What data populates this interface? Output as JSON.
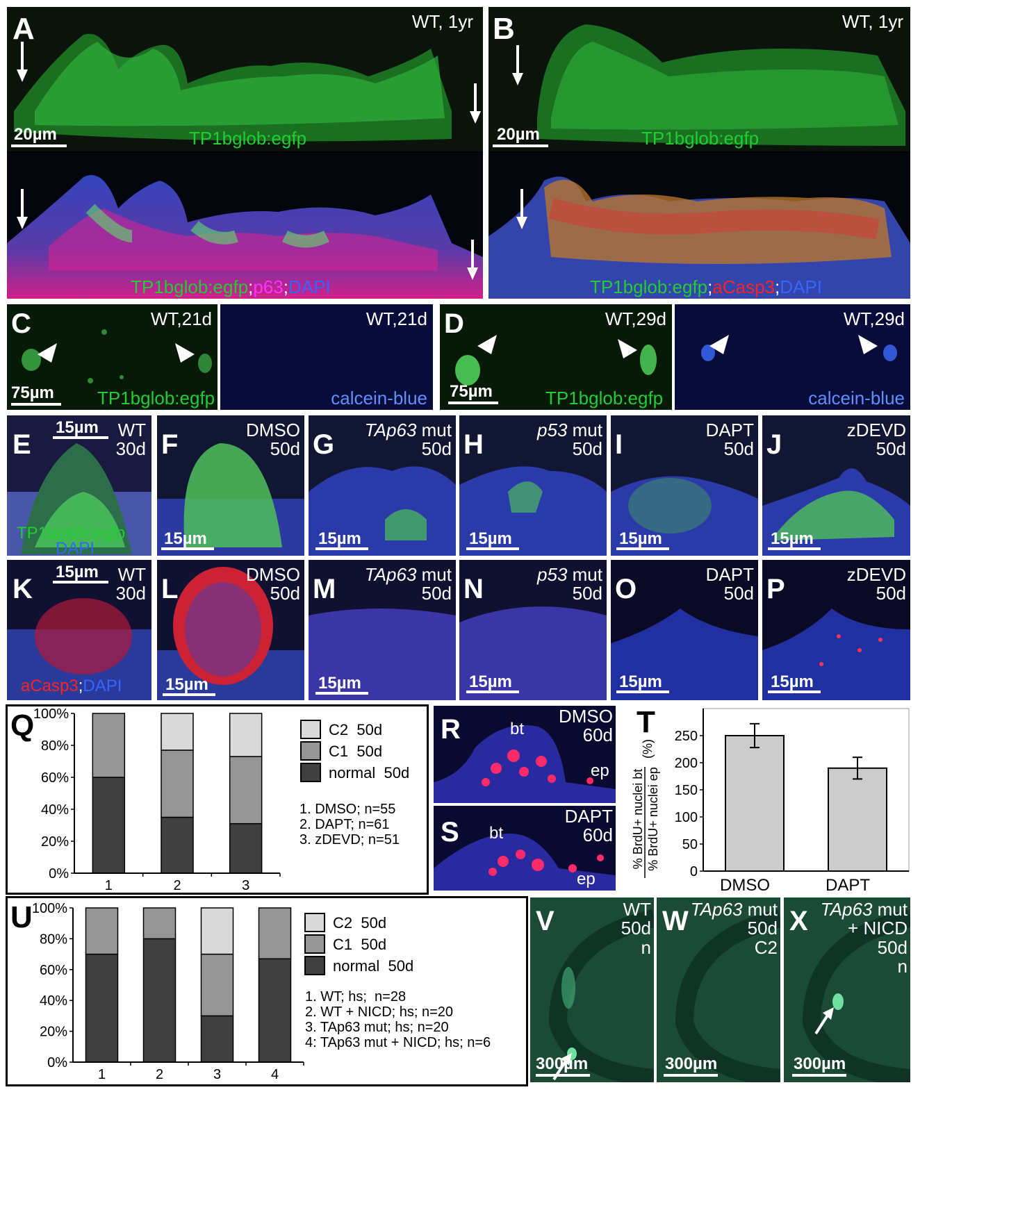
{
  "panels": {
    "A": {
      "label": "A",
      "condition": "WT, 1yr",
      "scale": "20µm",
      "stain_top": "TP1bglob:egfp",
      "stain_bottom_1": "TP1bglob:egfp",
      "stain_bottom_sep1": ";",
      "stain_bottom_2": "p63",
      "stain_bottom_sep2": ";",
      "stain_bottom_3": "DAPI"
    },
    "B": {
      "label": "B",
      "condition": "WT, 1yr",
      "scale": "20µm",
      "stain_top": "TP1bglob:egfp",
      "stain_bottom_1": "TP1bglob:egfp",
      "stain_bottom_sep1": ";",
      "stain_bottom_2": "aCasp3",
      "stain_bottom_sep2": ";",
      "stain_bottom_3": "DAPI"
    },
    "C": {
      "label": "C",
      "condition_left": "WT,21d",
      "condition_right": "WT,21d",
      "scale": "75µm",
      "stain_left": "TP1bglob:egfp",
      "stain_right": "calcein-blue"
    },
    "D": {
      "label": "D",
      "condition_left": "WT,29d",
      "condition_right": "WT,29d",
      "scale": "75µm",
      "stain_left": "TP1bglob:egfp",
      "stain_right": "calcein-blue"
    },
    "E": {
      "label": "E",
      "cond1": "WT",
      "cond2": "30d",
      "scale": "15µm",
      "stain1": "TP1bglob:egfp",
      "stain2": "DAPI"
    },
    "F": {
      "label": "F",
      "cond1": "DMSO",
      "cond2": "50d",
      "scale": "15µm"
    },
    "G": {
      "label": "G",
      "cond1a": "TAp63",
      "cond1b": " mut",
      "cond2": "50d",
      "scale": "15µm"
    },
    "H": {
      "label": "H",
      "cond1a": "p53",
      "cond1b": " mut",
      "cond2": "50d",
      "scale": "15µm"
    },
    "I": {
      "label": "I",
      "cond1": "DAPT",
      "cond2": "50d",
      "scale": "15µm"
    },
    "J": {
      "label": "J",
      "cond1": "zDEVD",
      "cond2": "50d",
      "scale": "15µm"
    },
    "K": {
      "label": "K",
      "cond1": "WT",
      "cond2": "30d",
      "scale": "15µm",
      "stain1": "aCasp3",
      "stain_sep": ";",
      "stain2": "DAPI"
    },
    "L": {
      "label": "L",
      "cond1": "DMSO",
      "cond2": "50d",
      "scale": "15µm"
    },
    "M": {
      "label": "M",
      "cond1a": "TAp63",
      "cond1b": " mut",
      "cond2": "50d",
      "scale": "15µm"
    },
    "N": {
      "label": "N",
      "cond1a": "p53",
      "cond1b": " mut",
      "cond2": "50d",
      "scale": "15µm"
    },
    "O": {
      "label": "O",
      "cond1": "DAPT",
      "cond2": "50d",
      "scale": "15µm"
    },
    "P": {
      "label": "P",
      "cond1": "zDEVD",
      "cond2": "50d",
      "scale": "15µm"
    },
    "R": {
      "label": "R",
      "cond1": "DMSO",
      "cond2": "60d",
      "bt": "bt",
      "ep": "ep"
    },
    "S": {
      "label": "S",
      "cond1": "DAPT",
      "cond2": "60d",
      "bt": "bt",
      "ep": "ep"
    },
    "V": {
      "label": "V",
      "cond1": "WT",
      "cond2": "50d",
      "cond3": "n",
      "scale": "300µm"
    },
    "W": {
      "label": "W",
      "cond1a": "TAp63",
      "cond1b": " mut",
      "cond2": "50d",
      "cond3": "C2",
      "scale": "300µm"
    },
    "X": {
      "label": "X",
      "cond1a": "TAp63",
      "cond1b": " mut",
      "cond2": "+ NICD",
      "cond3": "50d",
      "cond4": "n",
      "scale": "300µm"
    }
  },
  "colors": {
    "green": "#22cc33",
    "magenta": "#ff33ff",
    "blue": "#3366ff",
    "red": "#ff2222",
    "c2": "#d9d9d9",
    "c1": "#969696",
    "normal": "#404040",
    "tbar": "#cccccc"
  },
  "chart_data": [
    {
      "id": "Q",
      "label": "Q",
      "type": "bar",
      "stacked": true,
      "categories": [
        "1",
        "2",
        "3"
      ],
      "series": [
        {
          "name": "normal  50d",
          "values": [
            60,
            35,
            31
          ]
        },
        {
          "name": "C1  50d",
          "values": [
            40,
            42,
            42
          ]
        },
        {
          "name": "C2  50d",
          "values": [
            0,
            23,
            27
          ]
        }
      ],
      "yticks": [
        "0%",
        "20%",
        "40%",
        "60%",
        "80%",
        "100%"
      ],
      "ylim": [
        0,
        100
      ],
      "notes": [
        "1. DMSO; n=55",
        "2. DAPT; n=61",
        "3. zDEVD; n=51"
      ]
    },
    {
      "id": "T",
      "label": "T",
      "type": "bar",
      "categories": [
        "DMSO",
        "DAPT"
      ],
      "values": [
        250,
        190
      ],
      "errors": [
        22,
        20
      ],
      "ylim": [
        0,
        300
      ],
      "yticks": [
        "0",
        "50",
        "100",
        "150",
        "200",
        "250"
      ],
      "ylabel_top": "% BrdU+ nuclei bt",
      "ylabel_bottom": "% BrdU+ nuclei ep",
      "ylabel_unit": "(%)"
    },
    {
      "id": "U",
      "label": "U",
      "type": "bar",
      "stacked": true,
      "categories": [
        "1",
        "2",
        "3",
        "4"
      ],
      "series": [
        {
          "name": "normal  50d",
          "values": [
            70,
            80,
            30,
            67
          ]
        },
        {
          "name": "C1  50d",
          "values": [
            30,
            20,
            40,
            33
          ]
        },
        {
          "name": "C2  50d",
          "values": [
            0,
            0,
            30,
            0
          ]
        }
      ],
      "yticks": [
        "0%",
        "20%",
        "40%",
        "60%",
        "80%",
        "100%"
      ],
      "ylim": [
        0,
        100
      ],
      "notes": [
        "1. WT; hs;  n=28",
        "2. WT + NICD; hs; n=20",
        "3. TAp63 mut; hs; n=20",
        "4: TAp63 mut + NICD; hs; n=6"
      ]
    }
  ]
}
